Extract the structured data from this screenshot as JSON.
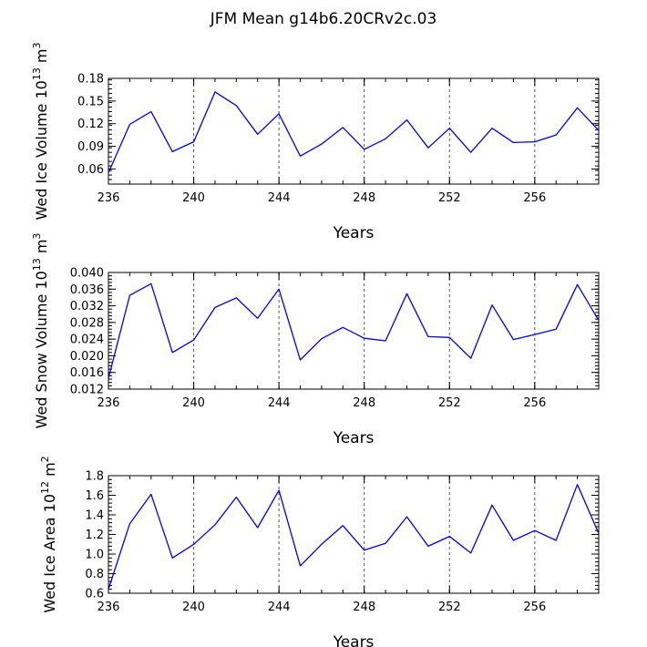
{
  "figure": {
    "title": "JFM Mean g14b6.20CRv2c.03"
  },
  "colors": {
    "series": "#0000ee",
    "axis": "#000000",
    "gridline": "#555555"
  },
  "chart_data": [
    {
      "type": "line",
      "xlabel": "Years",
      "ylabel": {
        "text": "Wed Ice Volume 10",
        "exponent": "13",
        "unit": " m",
        "unit_exponent": "3"
      },
      "xlim": [
        236,
        259
      ],
      "ylim": [
        0.04,
        0.18
      ],
      "xticks": [
        236,
        240,
        244,
        248,
        252,
        256
      ],
      "xtick_labels": [
        "236",
        "240",
        "244",
        "248",
        "252",
        "256"
      ],
      "yticks": [
        0.06,
        0.09,
        0.12,
        0.15,
        0.18
      ],
      "ytick_labels": [
        "0.06",
        "0.09",
        "0.12",
        "0.15",
        "0.18"
      ],
      "grid_x": [
        240,
        244,
        248,
        252,
        256
      ],
      "x": [
        236,
        237,
        238,
        239,
        240,
        241,
        242,
        243,
        244,
        245,
        246,
        247,
        248,
        249,
        250,
        251,
        252,
        253,
        254,
        255,
        256,
        257,
        258,
        259
      ],
      "y": [
        0.055,
        0.119,
        0.136,
        0.083,
        0.096,
        0.162,
        0.144,
        0.106,
        0.133,
        0.077,
        0.093,
        0.115,
        0.086,
        0.1,
        0.125,
        0.088,
        0.114,
        0.082,
        0.114,
        0.095,
        0.096,
        0.105,
        0.141,
        0.111
      ]
    },
    {
      "type": "line",
      "xlabel": "Years",
      "ylabel": {
        "text": "Wed Snow Volume 10",
        "exponent": "13",
        "unit": " m",
        "unit_exponent": "3"
      },
      "xlim": [
        236,
        259
      ],
      "ylim": [
        0.012,
        0.04
      ],
      "xticks": [
        236,
        240,
        244,
        248,
        252,
        256
      ],
      "xtick_labels": [
        "236",
        "240",
        "244",
        "248",
        "252",
        "256"
      ],
      "yticks": [
        0.012,
        0.016,
        0.02,
        0.024,
        0.028,
        0.032,
        0.036,
        0.04
      ],
      "ytick_labels": [
        "0.012",
        "0.016",
        "0.020",
        "0.024",
        "0.028",
        "0.032",
        "0.036",
        "0.040"
      ],
      "grid_x": [
        240,
        244,
        248,
        252,
        256
      ],
      "x": [
        236,
        237,
        238,
        239,
        240,
        241,
        242,
        243,
        244,
        245,
        246,
        247,
        248,
        249,
        250,
        251,
        252,
        253,
        254,
        255,
        256,
        257,
        258,
        259
      ],
      "y": [
        0.0146,
        0.0345,
        0.0373,
        0.0208,
        0.0238,
        0.0316,
        0.0339,
        0.029,
        0.036,
        0.019,
        0.0241,
        0.0268,
        0.0242,
        0.0236,
        0.0349,
        0.0246,
        0.0244,
        0.0194,
        0.0322,
        0.0239,
        0.0251,
        0.0264,
        0.0371,
        0.0285
      ]
    },
    {
      "type": "line",
      "xlabel": "Years",
      "ylabel": {
        "text": "Wed Ice Area 10",
        "exponent": "12",
        "unit": " m",
        "unit_exponent": "2"
      },
      "xlim": [
        236,
        259
      ],
      "ylim": [
        0.6,
        1.8
      ],
      "xticks": [
        236,
        240,
        244,
        248,
        252,
        256
      ],
      "xtick_labels": [
        "236",
        "240",
        "244",
        "248",
        "252",
        "256"
      ],
      "yticks": [
        0.6,
        0.8,
        1.0,
        1.2,
        1.4,
        1.6,
        1.8
      ],
      "ytick_labels": [
        "0.6",
        "0.8",
        "1.0",
        "1.2",
        "1.4",
        "1.6",
        "1.8"
      ],
      "grid_x": [
        240,
        244,
        248,
        252,
        256
      ],
      "x": [
        236,
        237,
        238,
        239,
        240,
        241,
        242,
        243,
        244,
        245,
        246,
        247,
        248,
        249,
        250,
        251,
        252,
        253,
        254,
        255,
        256,
        257,
        258,
        259
      ],
      "y": [
        0.64,
        1.31,
        1.61,
        0.96,
        1.1,
        1.3,
        1.58,
        1.27,
        1.65,
        0.88,
        1.1,
        1.29,
        1.04,
        1.11,
        1.38,
        1.08,
        1.18,
        1.01,
        1.5,
        1.14,
        1.24,
        1.14,
        1.71,
        1.21
      ]
    }
  ]
}
